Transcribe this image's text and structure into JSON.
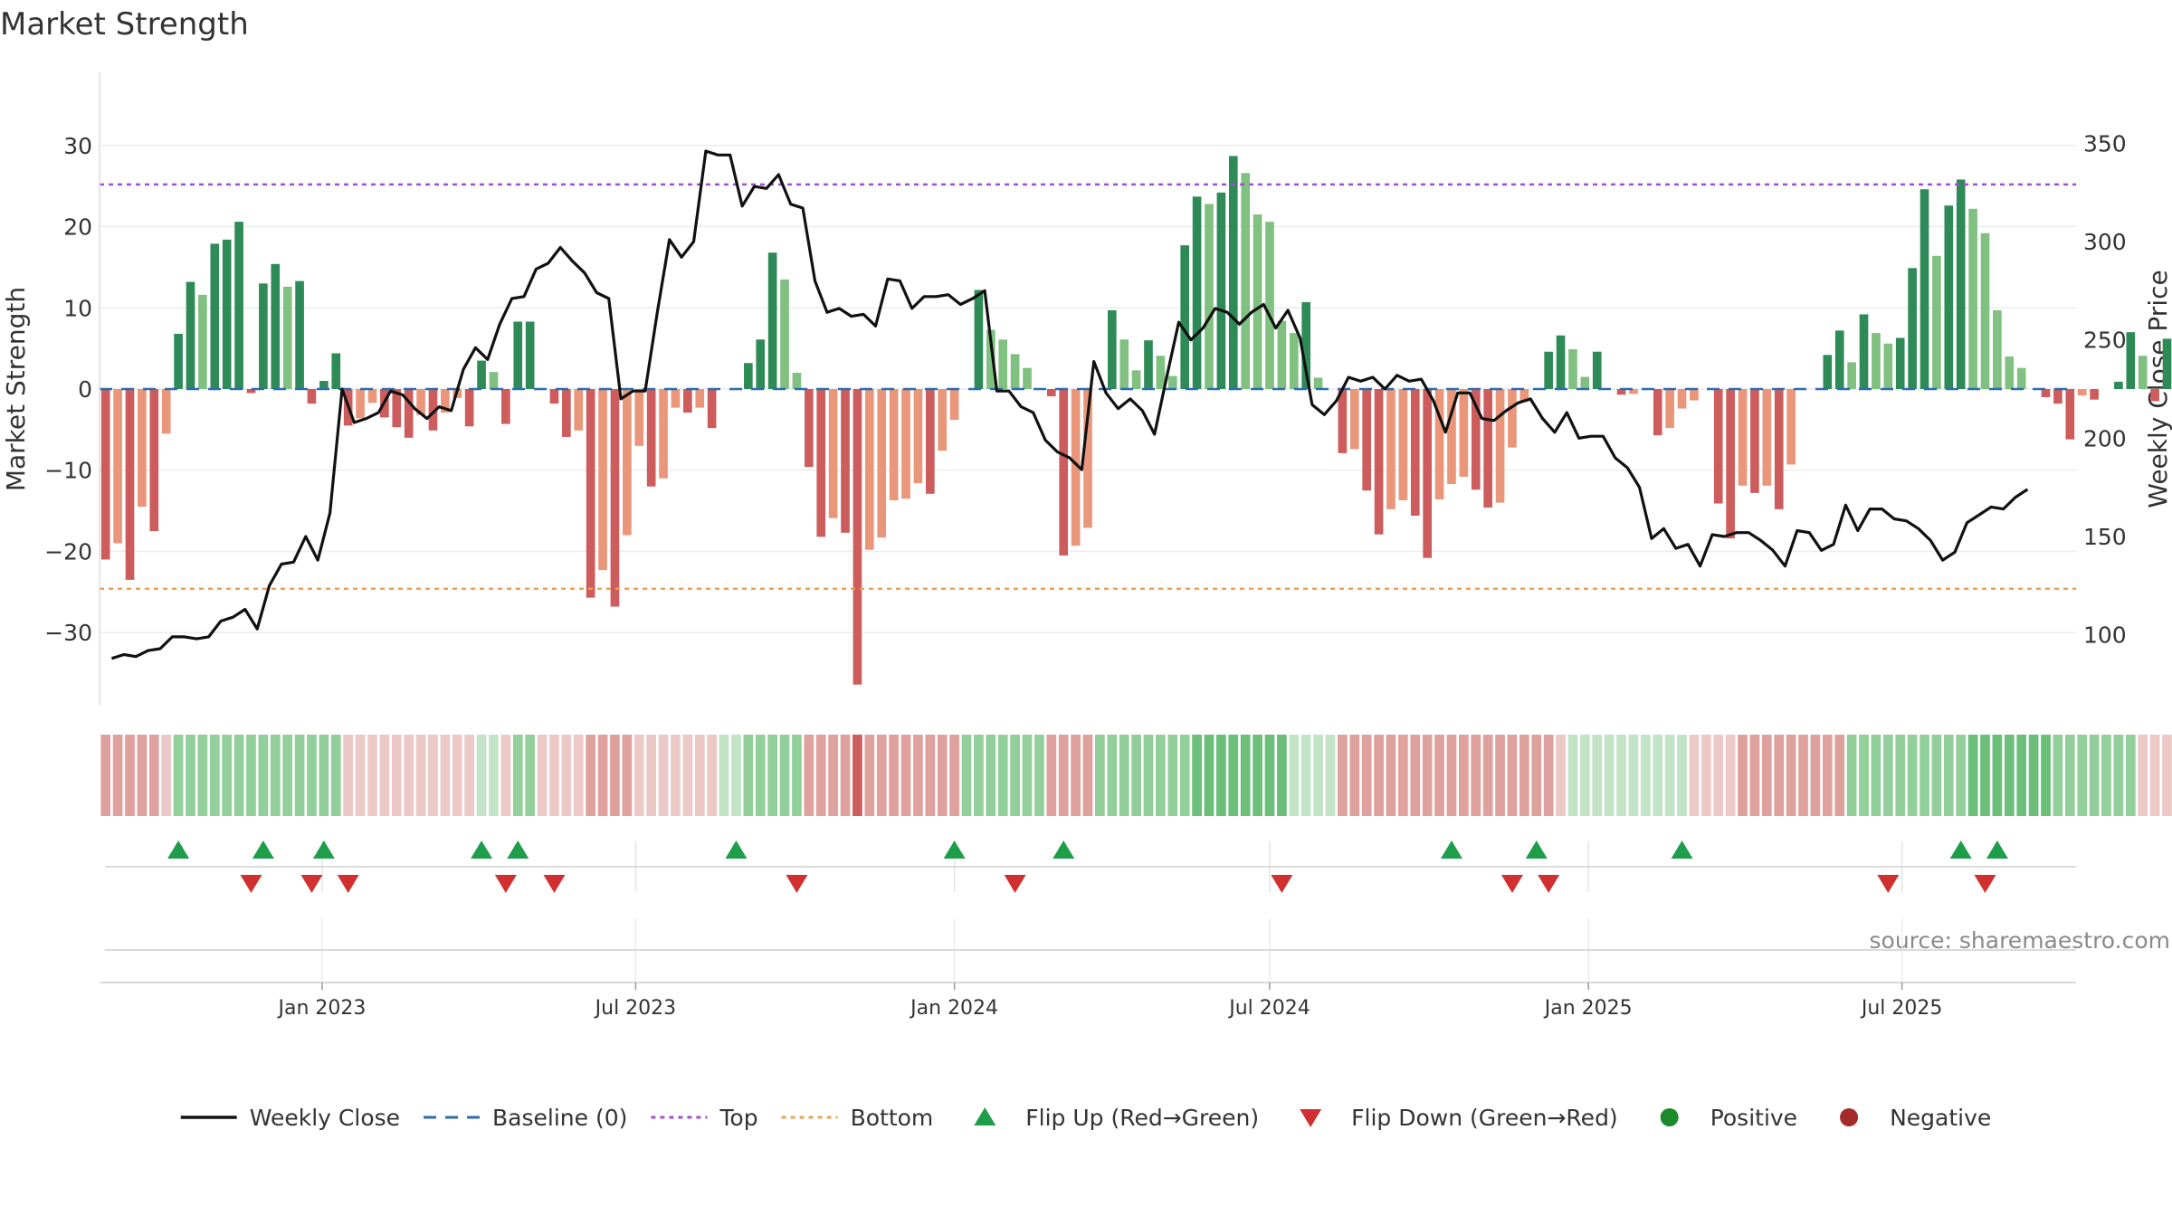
{
  "chart_data": {
    "type": "bar",
    "title": "Market Strength",
    "ylabel": "Market Strength",
    "y2label": "Weekly Close Price",
    "source": "source: sharemaestro.com",
    "ylim": [
      -39,
      39
    ],
    "y2lim": [
      64,
      386
    ],
    "yticks": [
      30,
      20,
      10,
      0,
      -10,
      -20,
      -30
    ],
    "ytick_labels": [
      "30",
      "20",
      "10",
      "0",
      "−10",
      "−20",
      "−30"
    ],
    "y2ticks": [
      350,
      300,
      250,
      200,
      150,
      100
    ],
    "y2tick_labels": [
      "350",
      "300",
      "250",
      "200",
      "150",
      "100"
    ],
    "x_start": "2022-08-29",
    "x_end": "2025-10-06",
    "xticks": [
      {
        "date": "2023-01-01",
        "label": "Jan 2023"
      },
      {
        "date": "2023-07-01",
        "label": "Jul 2023"
      },
      {
        "date": "2024-01-01",
        "label": "Jan 2024"
      },
      {
        "date": "2024-07-01",
        "label": "Jul 2024"
      },
      {
        "date": "2025-01-01",
        "label": "Jan 2025"
      },
      {
        "date": "2025-07-01",
        "label": "Jul 2025"
      }
    ],
    "top_threshold": 25.2,
    "bottom_threshold": -24.6,
    "baseline": 0,
    "grid": true,
    "legend_position": "bottom",
    "colors": {
      "strong_green": "#2e8b57",
      "light_green": "#80c080",
      "strong_red": "#cd5c5c",
      "light_red": "#e9967a",
      "price_line": "#111111",
      "baseline": "#2b6cb0",
      "top": "#a050d0",
      "bottom": "#f0a050",
      "flip_up": "#1e9e4a",
      "flip_down": "#d03030",
      "positive": "#1a8a2a",
      "negative": "#a52a2a"
    },
    "bars": {
      "name": "Market Strength",
      "values": [
        -21,
        -19,
        -23.5,
        -14.5,
        -17.5,
        -5.5,
        6.8,
        13.2,
        11.6,
        17.9,
        18.4,
        20.6,
        -0.5,
        13,
        15.4,
        12.6,
        13.3,
        -1.8,
        1,
        4.4,
        -4.5,
        -3.6,
        -1.7,
        -3.5,
        -4.7,
        -6,
        -3.2,
        -5.1,
        -2.9,
        -1.1,
        -4.6,
        3.5,
        2.1,
        -4.3,
        8.3,
        8.3,
        0,
        -1.8,
        -5.9,
        -5.1,
        -25.7,
        -22.3,
        -26.8,
        -18,
        -7,
        -12,
        -11,
        -2.3,
        -2.9,
        -2.3,
        -4.8,
        0,
        0,
        3.2,
        6.1,
        16.8,
        13.5,
        2,
        -9.6,
        -18.2,
        -15.9,
        -17.7,
        -36.4,
        -19.8,
        -18.3,
        -13.7,
        -13.5,
        -11.6,
        -12.9,
        -7.6,
        -3.8,
        0,
        12.2,
        7.3,
        6.1,
        4.3,
        2.6,
        0,
        -0.9,
        -20.5,
        -19.3,
        -17.1,
        0,
        9.7,
        6.1,
        2.3,
        6,
        4.1,
        1.6,
        17.7,
        23.7,
        22.8,
        24.2,
        28.7,
        26.6,
        21.5,
        20.6,
        8.4,
        6.9,
        10.7,
        1.4,
        0,
        -7.9,
        -7.4,
        -12.5,
        -17.9,
        -14.8,
        -13.7,
        -15.6,
        -20.8,
        -13.6,
        -11.7,
        -10.8,
        -12.4,
        -14.6,
        -14,
        -7.2,
        -1.6,
        0,
        4.6,
        6.6,
        4.9,
        1.5,
        4.6,
        0,
        -0.7,
        -0.6,
        0,
        -5.7,
        -4.8,
        -2.4,
        -1.4,
        0,
        -14.1,
        -18.4,
        -11.9,
        -12.8,
        -11.9,
        -14.8,
        -9.3,
        0,
        0,
        4.2,
        7.2,
        3.3,
        9.2,
        6.9,
        5.6,
        6.3,
        14.9,
        24.6,
        16.4,
        22.6,
        25.8,
        22.2,
        19.2,
        9.7,
        4,
        2.6,
        0,
        -1,
        -1.8,
        -6.2,
        -0.8,
        -1.3,
        0,
        0.9,
        7,
        4.1,
        -1.5,
        6.2
      ]
    },
    "price": {
      "name": "Weekly Close",
      "values": [
        88,
        90,
        89,
        92,
        93,
        99,
        99,
        98,
        99,
        107,
        109,
        113,
        103,
        125,
        136,
        137,
        150,
        138,
        162,
        225,
        208,
        210,
        213,
        224,
        222,
        215,
        210,
        216,
        214,
        235,
        246,
        240,
        258,
        271,
        272,
        286,
        289,
        297,
        290,
        284,
        274,
        271,
        220,
        224,
        224,
        264,
        301,
        292,
        300,
        346,
        344,
        344,
        318,
        328,
        327,
        334,
        319,
        317,
        280,
        264,
        266,
        262,
        263,
        257,
        281,
        280,
        266,
        272,
        272,
        273,
        268,
        271,
        275,
        224,
        224,
        216,
        213,
        199,
        193,
        190,
        184,
        239,
        223,
        215,
        220,
        214,
        202,
        231,
        259,
        250,
        256,
        266,
        264,
        258,
        264,
        268,
        256,
        265,
        251,
        217,
        212,
        219,
        231,
        229,
        231,
        225,
        232,
        229,
        230,
        219,
        203,
        223,
        223,
        210,
        209,
        214,
        218,
        220,
        210,
        203,
        213,
        200,
        201,
        201,
        190,
        185,
        175,
        149,
        154,
        144,
        146,
        135,
        151,
        150,
        152,
        152,
        148,
        143,
        135,
        153,
        152,
        143,
        146,
        166,
        153,
        164,
        164,
        159,
        158,
        154,
        148,
        138,
        142,
        157,
        161,
        165,
        164,
        170,
        174
      ],
      "x_offset_weeks": 0.5
    },
    "regime_strip": {
      "values": [
        4,
        4,
        4,
        4,
        4,
        3,
        -1,
        -1,
        -1,
        -1,
        -1,
        -1,
        -1,
        -1,
        -1,
        -1,
        -1,
        -1,
        -1,
        -1,
        3,
        3,
        3,
        3,
        3,
        3,
        3,
        3,
        3,
        3,
        3,
        -2,
        -2,
        3,
        -1,
        -1,
        3,
        3,
        3,
        3,
        4,
        4,
        4,
        4,
        3,
        3,
        3,
        3,
        3,
        3,
        3,
        -2,
        -2,
        -1,
        -1,
        -1,
        -1,
        -1,
        4,
        4,
        4,
        4,
        6,
        4,
        4,
        4,
        4,
        4,
        4,
        4,
        4,
        -1,
        -1,
        -1,
        -1,
        -1,
        -1,
        -1,
        4,
        4,
        4,
        4,
        -1,
        -1,
        -1,
        -1,
        -1,
        -1,
        -1,
        -1,
        -4,
        -4,
        -4,
        -4,
        -4,
        -4,
        -4,
        -4,
        -2,
        -2,
        -2,
        -2,
        4,
        4,
        4,
        4,
        4,
        4,
        4,
        4,
        4,
        4,
        4,
        4,
        4,
        4,
        4,
        4,
        4,
        4,
        3,
        -2,
        -2,
        -2,
        -2,
        -2,
        -2,
        -2,
        -2,
        -2,
        -2,
        3,
        3,
        3,
        3,
        4,
        4,
        4,
        4,
        4,
        4,
        4,
        4,
        4,
        -1,
        -1,
        -1,
        -1,
        -1,
        -1,
        -1,
        -1,
        -1,
        -1,
        -4,
        -4,
        -4,
        -4,
        -4,
        -4,
        -4,
        -1,
        -1,
        -1,
        -1,
        -1,
        -1,
        -1,
        3,
        3,
        3,
        3,
        3,
        3,
        -2,
        -2,
        -2,
        -2,
        3
      ],
      "colors": {
        "6": "#cd5c5c",
        "4": "#dfa19e",
        "3": "#ecc9c7",
        "-1": "#92cf9a",
        "-2": "#c3e3c7",
        "-4": "#6cbf7a"
      }
    },
    "flip_up_weeks": [
      6,
      13,
      18,
      31,
      34,
      52,
      70,
      79,
      111,
      118,
      130,
      153,
      156
    ],
    "flip_down_weeks": [
      12,
      17,
      20,
      33,
      37,
      57,
      75,
      97,
      116,
      119,
      147,
      155
    ]
  },
  "legend": {
    "items": [
      {
        "label": "Weekly Close",
        "symbol": "line",
        "color": "#111111"
      },
      {
        "label": "Baseline (0)",
        "symbol": "dash",
        "color": "#2b6cb0"
      },
      {
        "label": "Top",
        "symbol": "dot",
        "color": "#a050d0"
      },
      {
        "label": "Bottom",
        "symbol": "dot",
        "color": "#f0a050"
      },
      {
        "label": "Flip Up (Red→Green)",
        "symbol": "triangle-up",
        "color": "#1e9e4a"
      },
      {
        "label": "Flip Down (Green→Red)",
        "symbol": "triangle-down",
        "color": "#d03030"
      },
      {
        "label": "Positive",
        "symbol": "circle",
        "color": "#1a8a2a"
      },
      {
        "label": "Negative",
        "symbol": "circle",
        "color": "#a52a2a"
      }
    ]
  }
}
